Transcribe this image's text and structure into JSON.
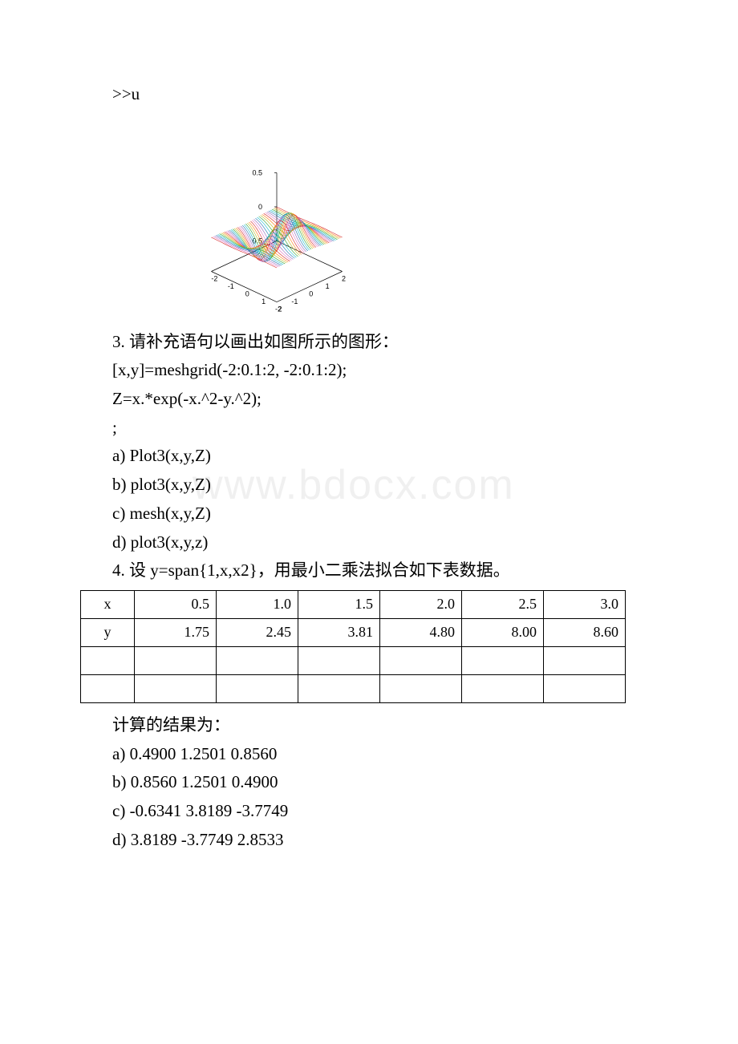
{
  "code_prompt": ">>u",
  "watermark": "www.bdocx.com",
  "chart": {
    "type": "3d-surface-lines",
    "z_ticks": [
      "0.5",
      "0",
      "0.5"
    ],
    "x_ticks": [
      "2",
      "1",
      "0",
      "-1",
      "-2"
    ],
    "y_ticks": [
      "-2",
      "-1",
      "0",
      "1",
      "2"
    ],
    "zlim": [
      -0.5,
      0.5
    ],
    "line_colors": [
      "#d62728",
      "#ff7f0e",
      "#bcbd22",
      "#2ca02c",
      "#17becf",
      "#1f77b4",
      "#9467bd",
      "#e377c2",
      "#d62728",
      "#ff7f0e",
      "#bcbd22",
      "#2ca02c",
      "#17becf",
      "#1f77b4",
      "#9467bd",
      "#e377c2",
      "#d62728",
      "#ff7f0e",
      "#bcbd22",
      "#2ca02c",
      "#17becf",
      "#1f77b4",
      "#9467bd",
      "#e377c2",
      "#d62728",
      "#ff7f0e",
      "#bcbd22",
      "#2ca02c",
      "#17becf",
      "#1f77b4",
      "#9467bd",
      "#e377c2",
      "#d62728",
      "#ff7f0e",
      "#bcbd22",
      "#2ca02c",
      "#17becf",
      "#1f77b4",
      "#9467bd",
      "#e377c2",
      "#d62728"
    ],
    "axis_color": "#000000",
    "tick_fontsize": 9,
    "line_width": 0.6,
    "background_color": "#ffffff"
  },
  "q3": {
    "prompt": "3. 请补充语句以画出如图所示的图形：",
    "code1": "[x,y]=meshgrid(-2:0.1:2, -2:0.1:2);",
    "code2": "Z=x.*exp(-x.^2-y.^2);",
    "code3": ";",
    "opt_a": "a) Plot3(x,y,Z)",
    "opt_b": "b) plot3(x,y,Z)",
    "opt_c": "c) mesh(x,y,Z)",
    "opt_d": "d) plot3(x,y,z)"
  },
  "q4": {
    "prompt": "4. 设 y=span{1,x,x2}，用最小二乘法拟合如下表数据。",
    "table": {
      "columns": [
        "x",
        "0.5",
        "1.0",
        "1.5",
        "2.0",
        "2.5",
        "3.0"
      ],
      "row_y": [
        "y",
        "1.75",
        "2.45",
        "3.81",
        "4.80",
        "8.00",
        "8.60"
      ]
    },
    "result_label": "计算的结果为：",
    "opt_a": "a) 0.4900 1.2501 0.8560",
    "opt_b": "b) 0.8560 1.2501 0.4900",
    "opt_c": "c) -0.6341 3.8189 -3.7749",
    "opt_d": "d) 3.8189 -3.7749 2.8533"
  }
}
